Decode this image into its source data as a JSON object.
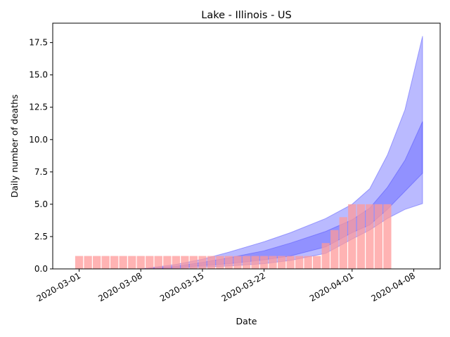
{
  "chart_data": {
    "type": "bar",
    "title": "Lake - Illinois - US",
    "xlabel": "Date",
    "ylabel": "Daily number of deaths",
    "x_ticks": [
      "2020-03-01",
      "2020-03-08",
      "2020-03-15",
      "2020-03-22",
      "2020-04-01",
      "2020-04-08"
    ],
    "y_ticks": [
      "0.0",
      "2.5",
      "5.0",
      "7.5",
      "10.0",
      "12.5",
      "15.0",
      "17.5"
    ],
    "ylim": [
      0,
      19
    ],
    "xlim": [
      "2020-02-27",
      "2020-04-11"
    ],
    "grid": false,
    "bars": {
      "color": "#ff9999",
      "dates": [
        "2020-03-01",
        "2020-03-02",
        "2020-03-03",
        "2020-03-04",
        "2020-03-05",
        "2020-03-06",
        "2020-03-07",
        "2020-03-08",
        "2020-03-09",
        "2020-03-10",
        "2020-03-11",
        "2020-03-12",
        "2020-03-13",
        "2020-03-14",
        "2020-03-15",
        "2020-03-16",
        "2020-03-17",
        "2020-03-18",
        "2020-03-19",
        "2020-03-20",
        "2020-03-21",
        "2020-03-22",
        "2020-03-23",
        "2020-03-24",
        "2020-03-25",
        "2020-03-26",
        "2020-03-27",
        "2020-03-28",
        "2020-03-29",
        "2020-03-30",
        "2020-03-31",
        "2020-04-01",
        "2020-04-02",
        "2020-04-03",
        "2020-04-04",
        "2020-04-05"
      ],
      "values": [
        1,
        1,
        1,
        1,
        1,
        1,
        1,
        1,
        1,
        1,
        1,
        1,
        1,
        1,
        1,
        1,
        1,
        1,
        1,
        1,
        1,
        1,
        1,
        1,
        1,
        1,
        1,
        1,
        2,
        3,
        4,
        5,
        5,
        5,
        5,
        5
      ]
    },
    "bands": {
      "color": "#0000ff",
      "dates": [
        "2020-03-08",
        "2020-03-12",
        "2020-03-15",
        "2020-03-18",
        "2020-03-22",
        "2020-03-25",
        "2020-03-29",
        "2020-04-01",
        "2020-04-03",
        "2020-04-05",
        "2020-04-07",
        "2020-04-09"
      ],
      "outer_low": [
        0,
        0.05,
        0.12,
        0.22,
        0.4,
        0.65,
        1.2,
        2.3,
        3.0,
        3.9,
        4.6,
        5.05
      ],
      "outer_high": [
        0,
        0.35,
        0.75,
        1.3,
        2.1,
        2.8,
        3.9,
        5.0,
        6.2,
        8.8,
        12.3,
        18.0
      ],
      "inner_low": [
        0,
        0.1,
        0.25,
        0.4,
        0.7,
        1.0,
        1.7,
        2.8,
        3.4,
        4.6,
        6.0,
        7.4
      ],
      "inner_high": [
        0,
        0.2,
        0.5,
        0.85,
        1.4,
        2.0,
        2.9,
        3.8,
        4.7,
        6.3,
        8.4,
        11.4
      ]
    }
  }
}
